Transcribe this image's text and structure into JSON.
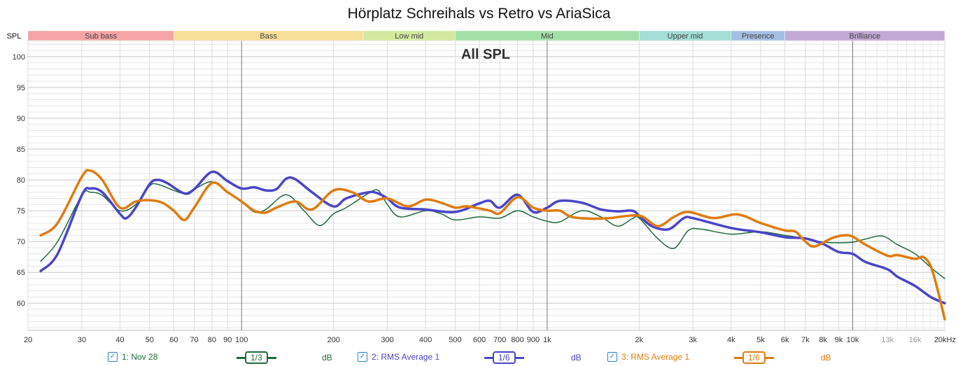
{
  "chart_data": {
    "type": "line",
    "title": "Hörplatz Schreihals vs Retro vs AriaSica",
    "subtitle": "All SPL",
    "ylabel": "SPL",
    "xlabel": "Hz",
    "xscale": "log",
    "xlim": [
      20,
      20000
    ],
    "ylim": [
      55.6,
      102.6
    ],
    "grid": true,
    "yticks": [
      60,
      65,
      70,
      75,
      80,
      85,
      90,
      95,
      100
    ],
    "xticks": [
      {
        "v": 20,
        "l": "20"
      },
      {
        "v": 30,
        "l": "30"
      },
      {
        "v": 40,
        "l": "40"
      },
      {
        "v": 50,
        "l": "50"
      },
      {
        "v": 60,
        "l": "60"
      },
      {
        "v": 70,
        "l": "70"
      },
      {
        "v": 80,
        "l": "80"
      },
      {
        "v": 90,
        "l": "90"
      },
      {
        "v": 100,
        "l": "100"
      },
      {
        "v": 200,
        "l": "200"
      },
      {
        "v": 300,
        "l": "300"
      },
      {
        "v": 400,
        "l": "400"
      },
      {
        "v": 500,
        "l": "500"
      },
      {
        "v": 600,
        "l": "600"
      },
      {
        "v": 700,
        "l": "700"
      },
      {
        "v": 800,
        "l": "800"
      },
      {
        "v": 900,
        "l": "900"
      },
      {
        "v": 1000,
        "l": "1k"
      },
      {
        "v": 2000,
        "l": "2k"
      },
      {
        "v": 3000,
        "l": "3k"
      },
      {
        "v": 4000,
        "l": "4k"
      },
      {
        "v": 5000,
        "l": "5k"
      },
      {
        "v": 6000,
        "l": "6k"
      },
      {
        "v": 7000,
        "l": "7k"
      },
      {
        "v": 8000,
        "l": "8k"
      },
      {
        "v": 9000,
        "l": "9k"
      },
      {
        "v": 10000,
        "l": "10k"
      },
      {
        "v": 13000,
        "l": "13k"
      },
      {
        "v": 16000,
        "l": "16k"
      },
      {
        "v": 20000,
        "l": "20kHz"
      }
    ],
    "bands": [
      {
        "name": "Sub bass",
        "from": 20,
        "to": 60,
        "color": "#f4a3a6"
      },
      {
        "name": "Bass",
        "from": 60,
        "to": 250,
        "color": "#f6dd98"
      },
      {
        "name": "Low mid",
        "from": 250,
        "to": 500,
        "color": "#d3eaa0"
      },
      {
        "name": "Mid",
        "from": 500,
        "to": 2000,
        "color": "#a3e0a8"
      },
      {
        "name": "Upper mid",
        "from": 2000,
        "to": 4000,
        "color": "#a2ddd6"
      },
      {
        "name": "Presence",
        "from": 4000,
        "to": 6000,
        "color": "#a5bfe3"
      },
      {
        "name": "Brilliance",
        "from": 6000,
        "to": 20000,
        "color": "#c2a8d4"
      }
    ],
    "series": [
      {
        "name": "1: Nov 28",
        "smoothing": "1/3",
        "unit": "dB",
        "color": "#1d6b3a",
        "width": 1.5,
        "x": [
          22,
          25,
          30,
          32,
          35,
          40,
          45,
          50,
          53,
          60,
          65,
          70,
          80,
          90,
          100,
          110,
          120,
          140,
          160,
          180,
          200,
          220,
          260,
          280,
          300,
          330,
          400,
          450,
          500,
          600,
          700,
          800,
          900,
          1000,
          1100,
          1300,
          1500,
          1700,
          1900,
          2000,
          2300,
          2600,
          2900,
          3200,
          4000,
          5000,
          6000,
          7000,
          8000,
          9000,
          10000,
          11000,
          12500,
          14000,
          16000,
          18000,
          20000
        ],
        "y": [
          66.8,
          70,
          77.5,
          78,
          77.5,
          75,
          76,
          79,
          79.3,
          78.3,
          77.8,
          78.5,
          79.7,
          78,
          76.5,
          74.8,
          75.2,
          77.6,
          75,
          72.6,
          74.5,
          75.5,
          77.8,
          78.3,
          76,
          74,
          75,
          74.5,
          73.5,
          74,
          73.8,
          75,
          74,
          73.3,
          73.2,
          75,
          74,
          72.5,
          73.7,
          73.8,
          70.5,
          68.9,
          71.8,
          72,
          71.2,
          71.6,
          71,
          70.5,
          69.9,
          69.8,
          69.9,
          70.4,
          70.9,
          69.5,
          68,
          65.8,
          64
        ]
      },
      {
        "name": "2: RMS Average 1",
        "smoothing": "1/6",
        "unit": "dB",
        "color": "#4a45c9",
        "width": 3.5,
        "x": [
          22,
          25,
          30,
          32,
          35,
          40,
          42,
          45,
          50,
          53,
          57,
          65,
          70,
          80,
          90,
          100,
          110,
          120,
          130,
          140,
          150,
          170,
          200,
          220,
          260,
          280,
          300,
          330,
          400,
          500,
          600,
          650,
          700,
          800,
          900,
          1000,
          1100,
          1300,
          1500,
          1700,
          1900,
          2000,
          2200,
          2500,
          2800,
          3000,
          4000,
          5000,
          6000,
          7000,
          8000,
          9000,
          10000,
          11000,
          13000,
          14000,
          16000,
          18000,
          20000
        ],
        "y": [
          65.2,
          68,
          77.5,
          78.6,
          78,
          74.5,
          73.8,
          75.5,
          79.3,
          80,
          79.5,
          77.8,
          78.5,
          81.3,
          79.8,
          78.6,
          78.8,
          78.3,
          78.5,
          80.2,
          80.1,
          78,
          75.7,
          77,
          78,
          77.8,
          77,
          75.5,
          75.2,
          74.8,
          76.2,
          76.6,
          75.5,
          77.6,
          74.8,
          75.5,
          76.6,
          76.3,
          75.2,
          74.9,
          75,
          74.2,
          72.5,
          72,
          73.8,
          73.8,
          72.2,
          71.5,
          70.7,
          70.5,
          69.6,
          68.3,
          68,
          66.7,
          65.5,
          64.3,
          62.8,
          61,
          60
        ]
      },
      {
        "name": "3: RMS Average 1",
        "smoothing": "1/6",
        "unit": "dB",
        "color": "#e07b10",
        "width": 3.5,
        "x": [
          22,
          25,
          30,
          32,
          35,
          40,
          45,
          50,
          55,
          60,
          65,
          70,
          80,
          90,
          100,
          110,
          120,
          130,
          150,
          170,
          200,
          230,
          260,
          300,
          350,
          400,
          450,
          500,
          550,
          650,
          700,
          800,
          900,
          1000,
          1100,
          1200,
          1400,
          1600,
          2000,
          2300,
          2600,
          2900,
          3500,
          4200,
          5000,
          6000,
          6500,
          7000,
          7500,
          8500,
          9300,
          10000,
          11000,
          13000,
          14000,
          16000,
          17000,
          18000,
          19000,
          20000
        ],
        "y": [
          71,
          73,
          80.5,
          81.5,
          80,
          75.5,
          76.5,
          76.7,
          76.3,
          75,
          73.5,
          75.5,
          79.5,
          78,
          76.5,
          75,
          74.7,
          75.5,
          76.5,
          75.2,
          78.3,
          78,
          76.5,
          77,
          75.7,
          76.8,
          76.3,
          75.5,
          75.7,
          75,
          74.6,
          77.2,
          75.5,
          75,
          75,
          74,
          73.7,
          73.8,
          74.2,
          72.5,
          74,
          74.8,
          73.8,
          74.4,
          73,
          71.8,
          71.6,
          70,
          69.2,
          70.5,
          71,
          70.8,
          69.5,
          67.7,
          67.8,
          67.2,
          67.5,
          66,
          62,
          57.4
        ]
      }
    ]
  }
}
